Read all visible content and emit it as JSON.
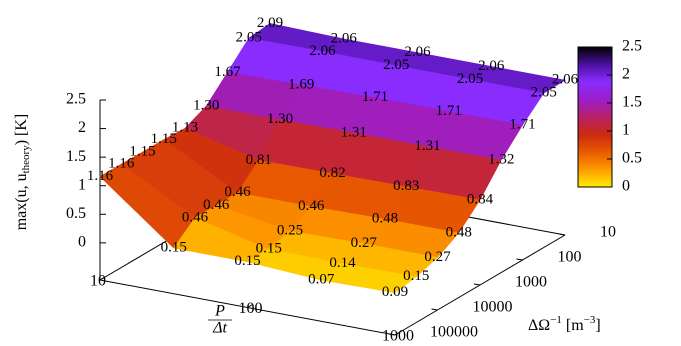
{
  "chart_data": {
    "type": "surface3d",
    "x": [
      10,
      31.6,
      100,
      316,
      1000
    ],
    "y": [
      10,
      31.6,
      100,
      316,
      1000,
      3162,
      10000,
      31623,
      100000
    ],
    "values": [
      [
        2.09,
        2.06,
        2.06,
        2.06,
        2.06
      ],
      [
        2.05,
        2.06,
        2.05,
        2.05,
        2.05
      ],
      [
        1.67,
        1.69,
        1.71,
        1.71,
        1.71
      ],
      [
        1.3,
        1.3,
        1.31,
        1.31,
        1.32
      ],
      [
        1.13,
        0.81,
        0.82,
        0.83,
        0.84
      ],
      [
        1.15,
        0.46,
        0.46,
        0.48,
        0.48
      ],
      [
        1.15,
        0.46,
        0.25,
        0.27,
        0.27
      ],
      [
        1.16,
        0.46,
        0.15,
        0.14,
        0.15
      ],
      [
        1.16,
        0.15,
        0.15,
        0.07,
        0.09
      ]
    ],
    "value_labels": [
      [
        "2.09",
        "2.06",
        "2.06",
        "2.06",
        "2.06"
      ],
      [
        "2.05",
        "2.06",
        "2.05",
        "2.05",
        "2.05"
      ],
      [
        "1.67",
        "1.69",
        "1.71",
        "1.71",
        "1.71"
      ],
      [
        "1.30",
        "1.30",
        "1.31",
        "1.31",
        "1.32"
      ],
      [
        "1.13",
        "0.81",
        "0.82",
        "0.83",
        "0.84"
      ],
      [
        "1.15",
        "0.46",
        "0.46",
        "0.48",
        "0.48"
      ],
      [
        "1.15",
        "0.46",
        "0.25",
        "0.27",
        "0.27"
      ],
      [
        "1.16",
        "0.46",
        "0.15",
        "0.14",
        "0.15"
      ],
      [
        "1.16",
        "0.15",
        "0.15",
        "0.07",
        "0.09"
      ]
    ],
    "xlim": [
      10,
      1000
    ],
    "xticks": [
      10,
      100,
      1000
    ],
    "xlog": true,
    "ylim": [
      10,
      100000
    ],
    "yticks": [
      10,
      100,
      1000,
      10000,
      100000
    ],
    "ylog": true,
    "zlim": [
      -0.65,
      2.5
    ],
    "zticks": [
      0,
      0.5,
      1,
      1.5,
      2,
      2.5
    ],
    "cblim": [
      0,
      2.5
    ],
    "cbticks": [
      0,
      0.5,
      1,
      1.5,
      2,
      2.5
    ],
    "palette": [
      "#ffee00",
      "#ff9a00",
      "#e85a00",
      "#cc2a10",
      "#b8206a",
      "#9a1ecc",
      "#8a2cff",
      "#4a10a0",
      "#000000"
    ],
    "xlabel": {
      "num": "P",
      "den": "Δt"
    },
    "ylabel": {
      "parts": [
        "ΔΩ",
        "−1",
        " [m",
        "−3",
        "]"
      ]
    },
    "zlabel": {
      "main": "max(u, u",
      "sub": "theory",
      "end": ") [K]"
    }
  }
}
